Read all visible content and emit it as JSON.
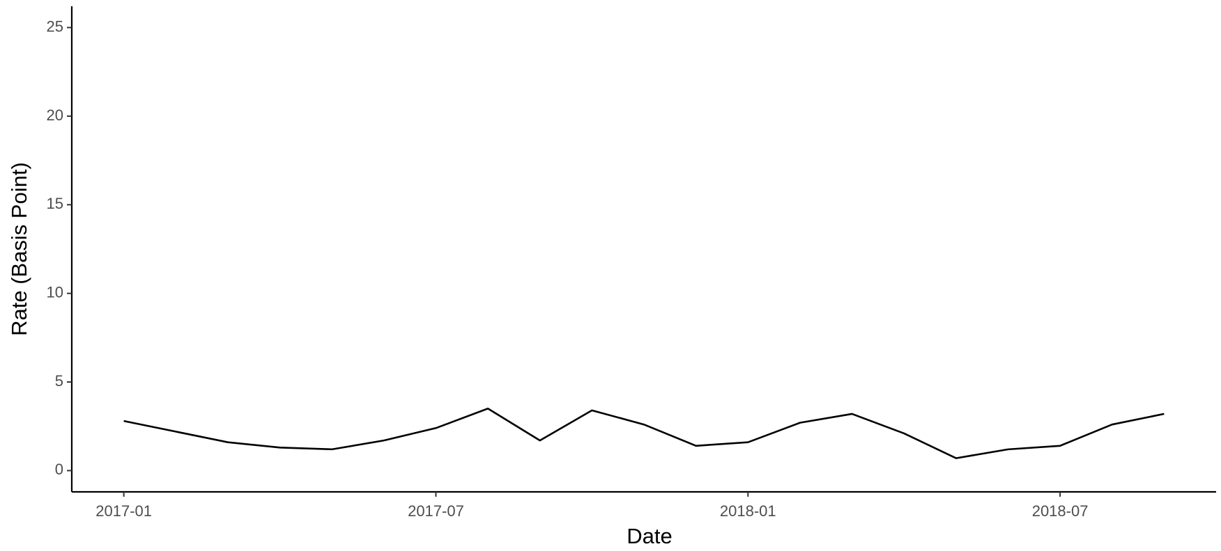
{
  "chart_data": {
    "type": "line",
    "x_label": "Date",
    "y_label": "Rate (Basis Point)",
    "x": [
      "2017-01",
      "2017-02",
      "2017-03",
      "2017-04",
      "2017-05",
      "2017-06",
      "2017-07",
      "2017-08",
      "2017-09",
      "2017-10",
      "2017-11",
      "2017-12",
      "2018-01",
      "2018-02",
      "2018-03",
      "2018-04",
      "2018-05",
      "2018-06",
      "2018-07",
      "2018-08",
      "2018-09"
    ],
    "series": [
      {
        "name": "Rate",
        "color": "#000000",
        "values": [
          2.8,
          2.2,
          1.6,
          1.3,
          1.2,
          1.7,
          2.4,
          3.5,
          1.7,
          3.4,
          2.6,
          1.4,
          1.6,
          2.7,
          3.2,
          2.1,
          0.7,
          1.2,
          1.4,
          2.6,
          3.2
        ]
      }
    ],
    "xlim": [
      "2016-12",
      "2018-10"
    ],
    "xticks": [
      "2017-01",
      "2017-07",
      "2018-01",
      "2018-07"
    ],
    "ylim": [
      -1.2,
      26.2
    ],
    "yticks": [
      0,
      5,
      10,
      15,
      20,
      25
    ],
    "grid": false
  }
}
